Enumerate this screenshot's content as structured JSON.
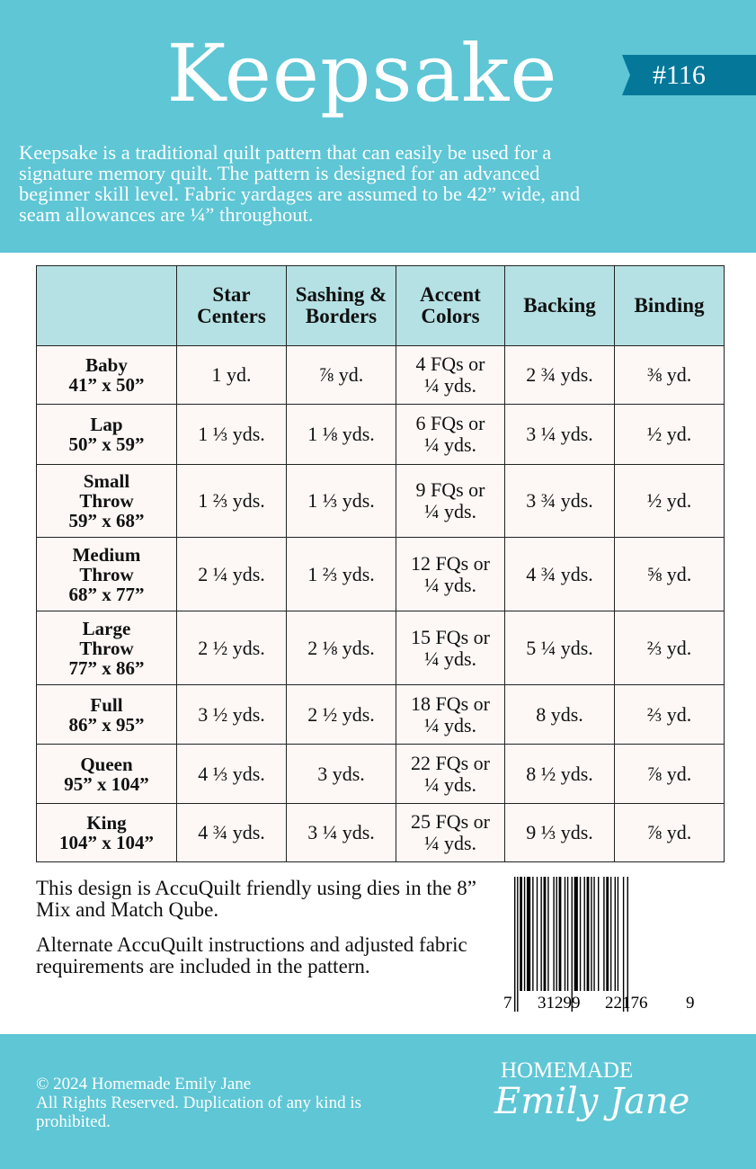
{
  "header": {
    "title": "Keepsake",
    "pattern_number": "#116",
    "intro": "Keepsake is a traditional quilt pattern that can easily be used for a\nsignature memory quilt. The pattern is designed for an advanced\nbeginner skill level.  Fabric yardages are assumed to be 42” wide, and\nseam allowances are ¼” throughout."
  },
  "table": {
    "columns": [
      "",
      "Star Centers",
      "Sashing & Borders",
      "Accent Colors",
      "Backing",
      "Binding"
    ],
    "rows": [
      [
        "Baby\n41” x 50”",
        "1 yd.",
        "⅞ yd.",
        "4 FQs or\n¼ yds.",
        "2 ¾ yds.",
        "⅜ yd."
      ],
      [
        "Lap\n50” x 59”",
        "1 ⅓ yds.",
        "1 ⅛ yds.",
        "6 FQs or\n¼ yds.",
        "3 ¼ yds.",
        "½ yd."
      ],
      [
        "Small\nThrow\n59” x 68”",
        "1 ⅔ yds.",
        "1 ⅓ yds.",
        "9 FQs or\n¼ yds.",
        "3 ¾ yds.",
        "½ yd."
      ],
      [
        "Medium\nThrow\n68” x 77”",
        "2 ¼ yds.",
        "1 ⅔ yds.",
        "12 FQs or\n¼ yds.",
        "4 ¾ yds.",
        "⅝ yd."
      ],
      [
        "Large\nThrow\n77” x 86”",
        "2 ½ yds.",
        "2 ⅛ yds.",
        "15 FQs or\n¼ yds.",
        "5 ¼ yds.",
        "⅔ yd."
      ],
      [
        "Full\n86” x 95”",
        "3 ½ yds.",
        "2 ½ yds.",
        "18 FQs or\n¼ yds.",
        "8 yds.",
        "⅔ yd."
      ],
      [
        "Queen\n95” x 104”",
        "4 ⅓ yds.",
        "3 yds.",
        "22 FQs or\n¼ yds.",
        "8 ½ yds.",
        "⅞ yd."
      ],
      [
        "King\n104” x 104”",
        "4 ¾ yds.",
        "3 ¼ yds.",
        "25 FQs or\n¼ yds.",
        "9 ⅓ yds.",
        "⅞ yd."
      ]
    ]
  },
  "notes": [
    "This design is AccuQuilt friendly using dies in the 8” Mix and Match Qube.",
    "Alternate AccuQuilt instructions and adjusted fabric requirements are included in the pattern."
  ],
  "barcode": {
    "digits": [
      "7",
      "31299",
      "22176",
      "9"
    ]
  },
  "footer": {
    "copyright": "© 2024 Homemade Emily Jane\nAll Rights Reserved. Duplication of any kind is prohibited.",
    "logo_top": "HOMEMADE",
    "logo_script": "Emily Jane"
  },
  "colors": {
    "teal": "#5ec6d5",
    "ribbon": "#05789a",
    "table_header": "#b5e1e4"
  }
}
